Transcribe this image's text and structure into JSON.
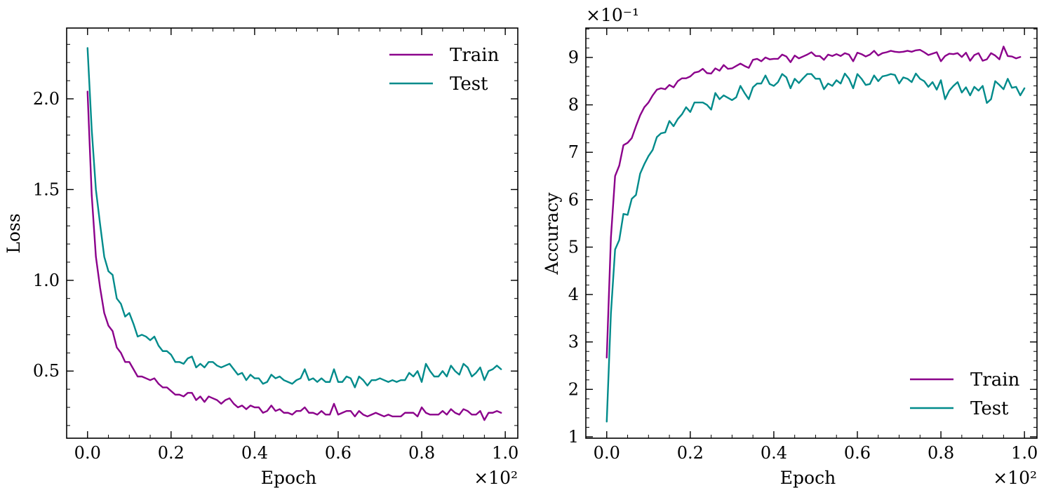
{
  "colors": {
    "train": "#8b008b",
    "test": "#008b8b"
  },
  "chart_data": [
    {
      "type": "line",
      "xlabel": "Epoch",
      "ylabel": "Loss",
      "x_multiplier_label": "×10²",
      "xlim": [
        -0.05,
        1.03
      ],
      "ylim": [
        0.13,
        2.39
      ],
      "x_ticks": [
        0.0,
        0.2,
        0.4,
        0.6,
        0.8,
        1.0
      ],
      "x_tick_labels": [
        "0.0",
        "0.2",
        "0.4",
        "0.6",
        "0.8",
        "1.0"
      ],
      "y_ticks": [
        0.5,
        1.0,
        1.5,
        2.0
      ],
      "y_tick_labels": [
        "0.5",
        "1.0",
        "1.5",
        "2.0"
      ],
      "legend_position": "top-right",
      "series": [
        {
          "name": "Train",
          "color_key": "train",
          "x_start": 0.0,
          "x_step": 0.01,
          "values": [
            2.04,
            1.47,
            1.13,
            0.96,
            0.82,
            0.75,
            0.72,
            0.63,
            0.6,
            0.55,
            0.55,
            0.51,
            0.47,
            0.47,
            0.46,
            0.45,
            0.46,
            0.43,
            0.41,
            0.41,
            0.39,
            0.37,
            0.37,
            0.36,
            0.38,
            0.38,
            0.34,
            0.36,
            0.33,
            0.36,
            0.35,
            0.34,
            0.32,
            0.34,
            0.35,
            0.32,
            0.3,
            0.31,
            0.29,
            0.31,
            0.3,
            0.3,
            0.27,
            0.28,
            0.31,
            0.28,
            0.29,
            0.27,
            0.27,
            0.26,
            0.28,
            0.28,
            0.3,
            0.27,
            0.27,
            0.26,
            0.28,
            0.26,
            0.26,
            0.32,
            0.26,
            0.27,
            0.28,
            0.28,
            0.25,
            0.28,
            0.26,
            0.25,
            0.26,
            0.27,
            0.26,
            0.25,
            0.26,
            0.25,
            0.25,
            0.25,
            0.27,
            0.27,
            0.27,
            0.25,
            0.3,
            0.27,
            0.26,
            0.26,
            0.26,
            0.28,
            0.26,
            0.29,
            0.27,
            0.26,
            0.29,
            0.28,
            0.26,
            0.26,
            0.28,
            0.23,
            0.27,
            0.27,
            0.28,
            0.27
          ]
        },
        {
          "name": "Test",
          "color_key": "test",
          "x_start": 0.0,
          "x_step": 0.01,
          "values": [
            2.28,
            1.83,
            1.5,
            1.31,
            1.13,
            1.05,
            1.03,
            0.9,
            0.87,
            0.8,
            0.82,
            0.76,
            0.69,
            0.7,
            0.69,
            0.67,
            0.69,
            0.64,
            0.61,
            0.61,
            0.59,
            0.55,
            0.55,
            0.54,
            0.57,
            0.58,
            0.52,
            0.54,
            0.52,
            0.55,
            0.55,
            0.53,
            0.52,
            0.53,
            0.54,
            0.51,
            0.48,
            0.49,
            0.45,
            0.48,
            0.46,
            0.46,
            0.43,
            0.44,
            0.48,
            0.46,
            0.47,
            0.45,
            0.44,
            0.43,
            0.45,
            0.46,
            0.51,
            0.45,
            0.46,
            0.44,
            0.46,
            0.44,
            0.44,
            0.51,
            0.44,
            0.44,
            0.47,
            0.46,
            0.41,
            0.47,
            0.45,
            0.42,
            0.45,
            0.45,
            0.46,
            0.45,
            0.44,
            0.45,
            0.44,
            0.45,
            0.45,
            0.49,
            0.47,
            0.5,
            0.44,
            0.54,
            0.5,
            0.47,
            0.47,
            0.5,
            0.47,
            0.53,
            0.5,
            0.48,
            0.54,
            0.52,
            0.47,
            0.49,
            0.52,
            0.45,
            0.5,
            0.51,
            0.53,
            0.51
          ]
        }
      ]
    },
    {
      "type": "line",
      "xlabel": "Epoch",
      "ylabel": "Accuracy",
      "x_multiplier_label": "×10²",
      "y_multiplier_label": "×10⁻¹",
      "xlim": [
        -0.05,
        1.03
      ],
      "ylim": [
        0.97,
        9.62
      ],
      "x_ticks": [
        0.0,
        0.2,
        0.4,
        0.6,
        0.8,
        1.0
      ],
      "x_tick_labels": [
        "0.0",
        "0.2",
        "0.4",
        "0.6",
        "0.8",
        "1.0"
      ],
      "y_ticks": [
        1,
        2,
        3,
        4,
        5,
        6,
        7,
        8,
        9
      ],
      "y_tick_labels": [
        "1",
        "2",
        "3",
        "4",
        "5",
        "6",
        "7",
        "8",
        "9"
      ],
      "legend_position": "bottom-right",
      "series": [
        {
          "name": "Train",
          "color_key": "train",
          "x_start": 0.0,
          "x_step": 0.01,
          "values": [
            2.67,
            5.2,
            6.5,
            6.72,
            7.15,
            7.2,
            7.3,
            7.55,
            7.78,
            7.95,
            8.05,
            8.2,
            8.32,
            8.35,
            8.33,
            8.42,
            8.37,
            8.5,
            8.56,
            8.56,
            8.6,
            8.68,
            8.7,
            8.76,
            8.67,
            8.66,
            8.77,
            8.72,
            8.84,
            8.76,
            8.77,
            8.82,
            8.87,
            8.82,
            8.78,
            8.95,
            8.97,
            8.92,
            9.0,
            8.96,
            8.97,
            8.97,
            9.06,
            9.02,
            8.9,
            9.04,
            8.98,
            9.02,
            9.06,
            9.11,
            9.03,
            9.03,
            8.95,
            9.06,
            9.03,
            9.07,
            9.03,
            9.09,
            9.06,
            8.92,
            9.1,
            9.07,
            9.02,
            9.06,
            9.14,
            9.04,
            9.09,
            9.11,
            9.14,
            9.12,
            9.11,
            9.12,
            9.14,
            9.12,
            9.15,
            9.16,
            9.11,
            9.05,
            9.08,
            9.11,
            8.92,
            9.03,
            9.08,
            9.07,
            9.09,
            9.01,
            9.1,
            8.93,
            9.05,
            9.09,
            8.93,
            8.96,
            9.09,
            9.04,
            8.96,
            9.23,
            9.03,
            9.02,
            8.98,
            9.01
          ]
        },
        {
          "name": "Test",
          "color_key": "test",
          "x_start": 0.0,
          "x_step": 0.01,
          "values": [
            1.32,
            3.6,
            4.95,
            5.15,
            5.7,
            5.68,
            6.02,
            6.1,
            6.55,
            6.75,
            6.92,
            7.05,
            7.32,
            7.4,
            7.42,
            7.66,
            7.55,
            7.7,
            7.8,
            7.95,
            7.85,
            8.05,
            8.05,
            8.05,
            8.0,
            7.9,
            8.25,
            8.12,
            8.2,
            8.15,
            8.1,
            8.16,
            8.4,
            8.25,
            8.12,
            8.37,
            8.45,
            8.45,
            8.62,
            8.44,
            8.4,
            8.48,
            8.65,
            8.58,
            8.35,
            8.55,
            8.46,
            8.56,
            8.65,
            8.65,
            8.55,
            8.55,
            8.33,
            8.45,
            8.4,
            8.52,
            8.45,
            8.66,
            8.55,
            8.35,
            8.65,
            8.55,
            8.42,
            8.44,
            8.62,
            8.5,
            8.6,
            8.62,
            8.65,
            8.63,
            8.45,
            8.58,
            8.55,
            8.48,
            8.66,
            8.55,
            8.5,
            8.38,
            8.48,
            8.32,
            8.52,
            8.12,
            8.3,
            8.4,
            8.48,
            8.26,
            8.37,
            8.2,
            8.38,
            8.3,
            8.4,
            8.04,
            8.12,
            8.5,
            8.42,
            8.33,
            8.55,
            8.36,
            8.38,
            8.2,
            8.35
          ]
        }
      ]
    }
  ]
}
